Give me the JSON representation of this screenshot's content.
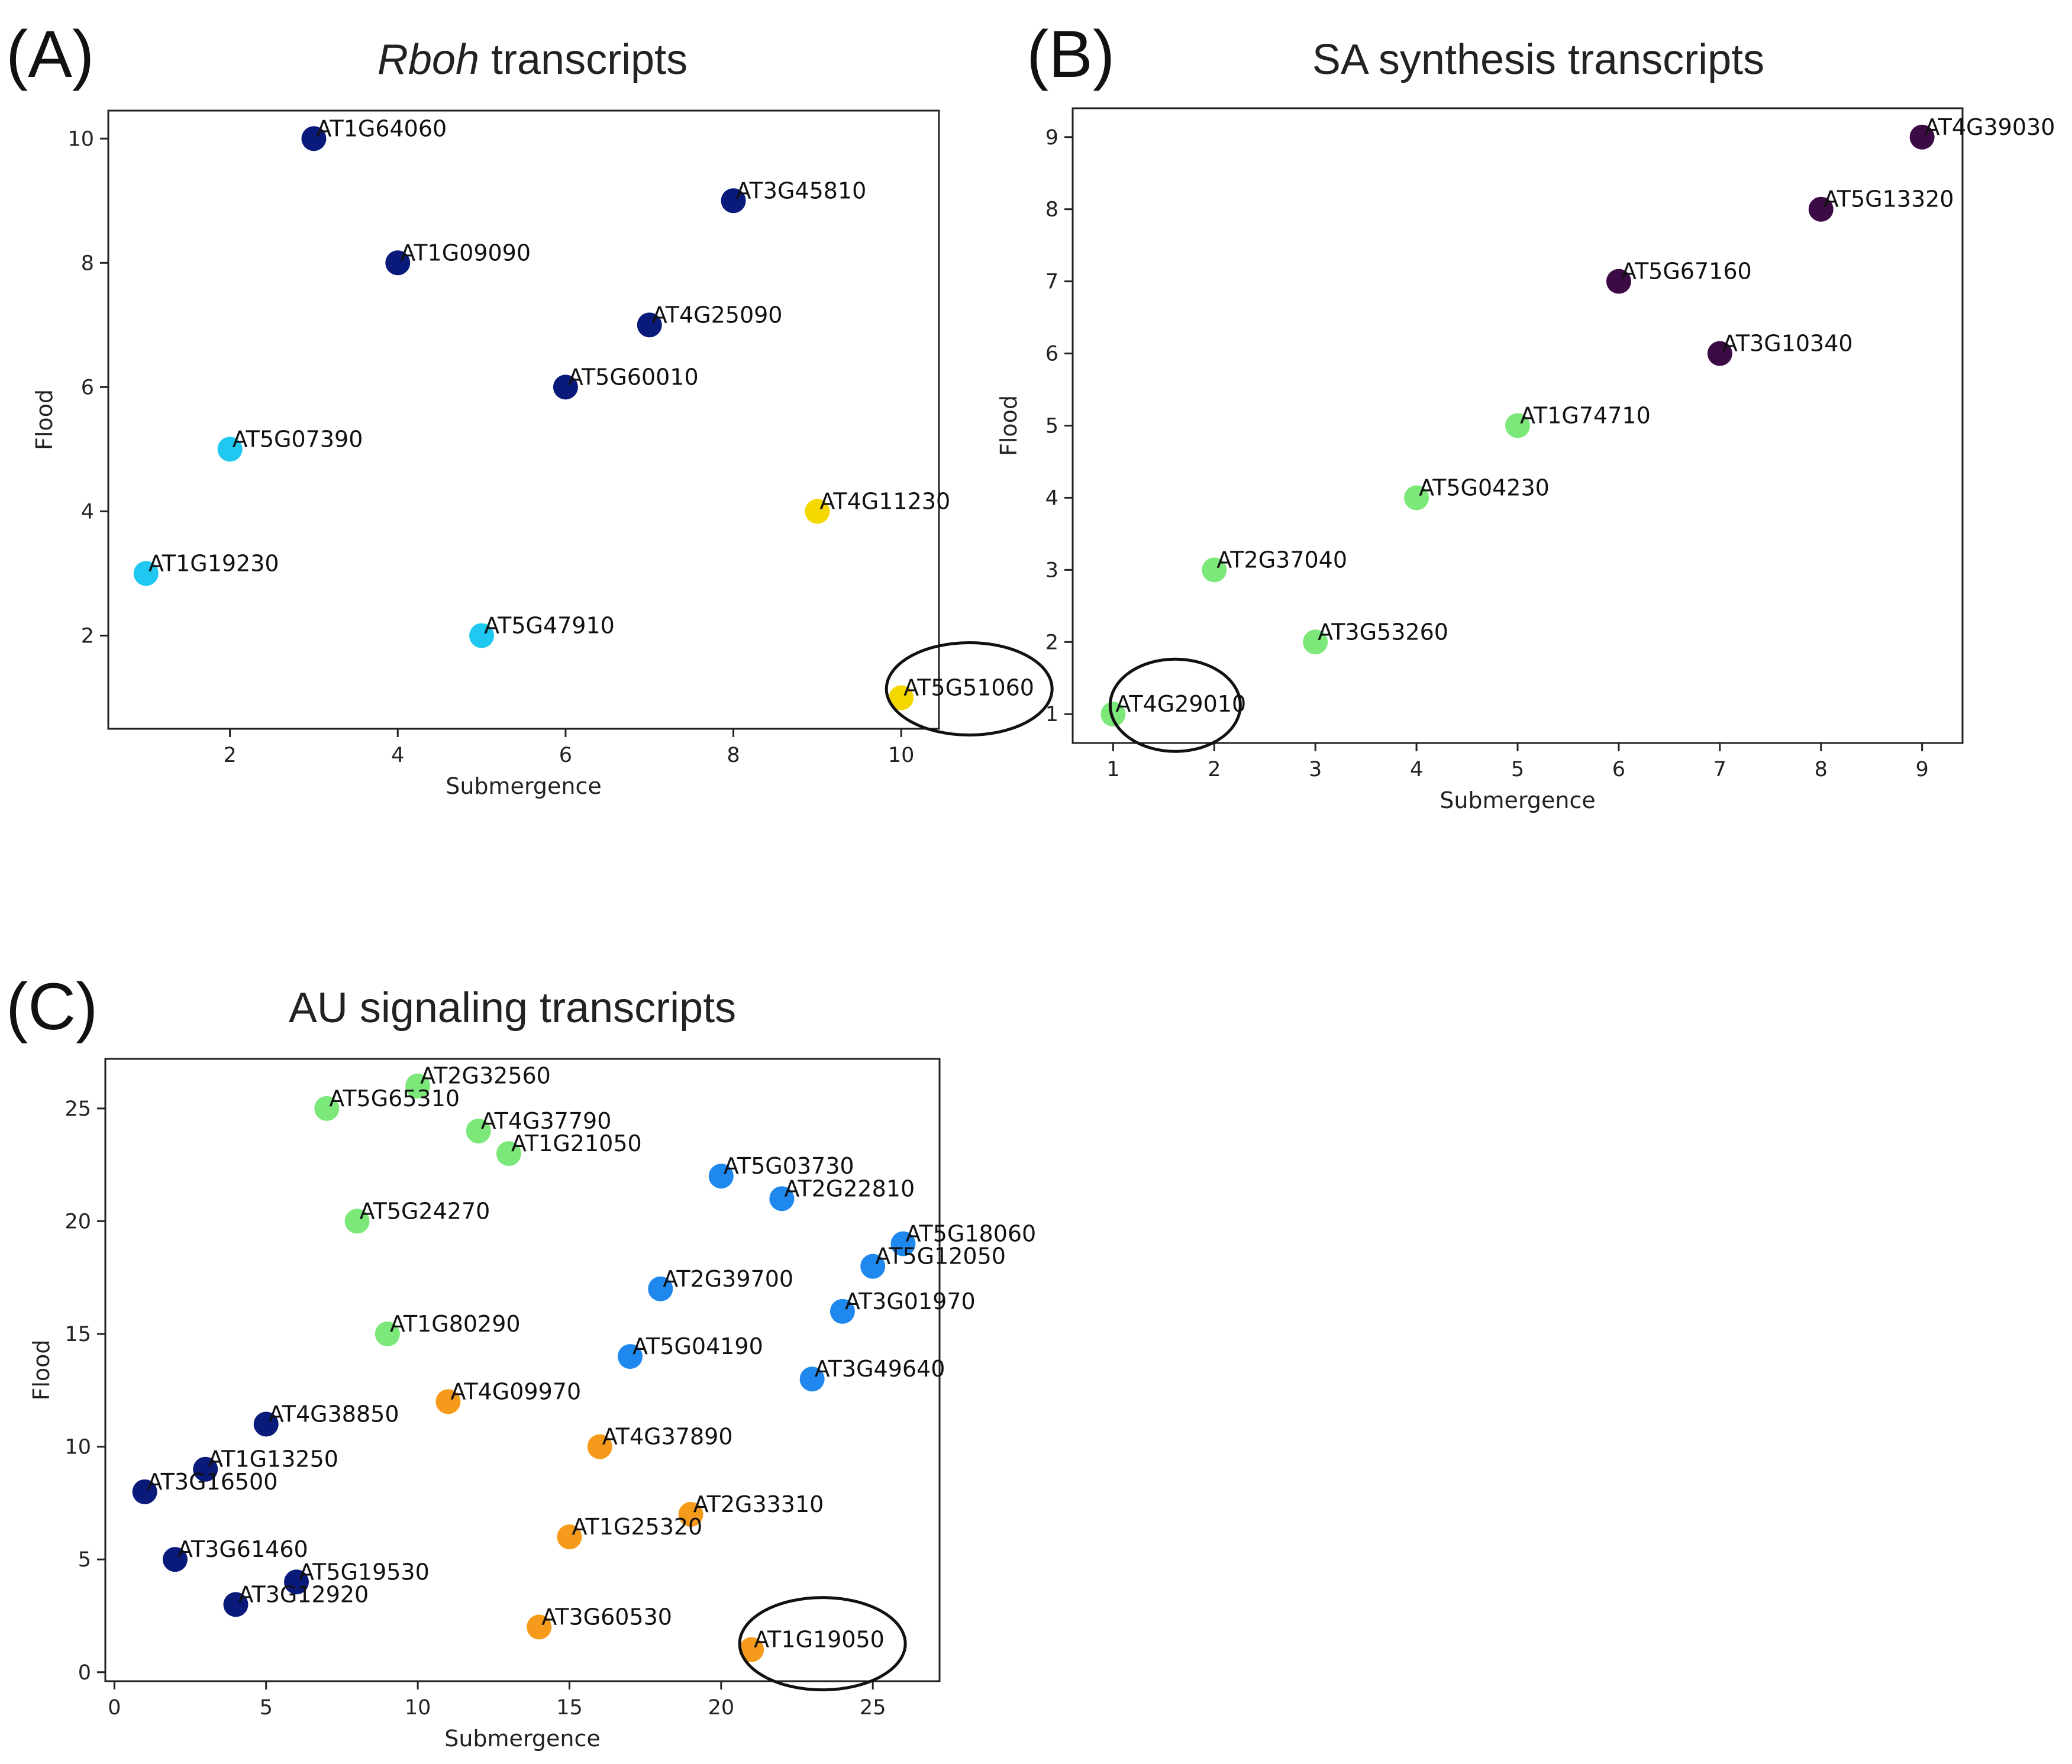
{
  "chart_data": [
    {
      "id": "A",
      "type": "scatter",
      "panel_letter": "(A)",
      "title_italic": "Rboh",
      "title_rest": " transcripts",
      "xlabel": "Submergence",
      "ylabel": "Flood",
      "xlim": [
        0.55,
        10.45
      ],
      "ylim": [
        0.5,
        10.45
      ],
      "xticks": [
        2,
        4,
        6,
        8,
        10
      ],
      "yticks": [
        2,
        4,
        6,
        8,
        10
      ],
      "highlight": "AT5G51060",
      "points": [
        {
          "label": "AT1G64060",
          "x": 3,
          "y": 10,
          "color": "#0a1a7a"
        },
        {
          "label": "AT3G45810",
          "x": 8,
          "y": 9,
          "color": "#0a1a7a"
        },
        {
          "label": "AT1G09090",
          "x": 4,
          "y": 8,
          "color": "#0a1a7a"
        },
        {
          "label": "AT4G25090",
          "x": 7,
          "y": 7,
          "color": "#0a1a7a"
        },
        {
          "label": "AT5G60010",
          "x": 6,
          "y": 6,
          "color": "#0a1a7a"
        },
        {
          "label": "AT5G07390",
          "x": 2,
          "y": 5,
          "color": "#1ec8f0"
        },
        {
          "label": "AT4G11230",
          "x": 9,
          "y": 4,
          "color": "#f5d800"
        },
        {
          "label": "AT1G19230",
          "x": 1,
          "y": 3,
          "color": "#1ec8f0"
        },
        {
          "label": "AT5G47910",
          "x": 5,
          "y": 2,
          "color": "#1ec8f0"
        },
        {
          "label": "AT5G51060",
          "x": 10,
          "y": 1,
          "color": "#f5d800"
        }
      ]
    },
    {
      "id": "B",
      "type": "scatter",
      "panel_letter": "(B)",
      "title_italic": "",
      "title_rest": "SA synthesis transcripts",
      "xlabel": "Submergence",
      "ylabel": "Flood",
      "xlim": [
        0.6,
        9.4
      ],
      "ylim": [
        0.6,
        9.4
      ],
      "xticks": [
        1,
        2,
        3,
        4,
        5,
        6,
        7,
        8,
        9
      ],
      "yticks": [
        1,
        2,
        3,
        4,
        5,
        6,
        7,
        8,
        9
      ],
      "highlight": "AT4G29010",
      "points": [
        {
          "label": "AT4G39030",
          "x": 9,
          "y": 9,
          "color": "#3c0a45"
        },
        {
          "label": "AT5G13320",
          "x": 8,
          "y": 8,
          "color": "#3c0a45"
        },
        {
          "label": "AT5G67160",
          "x": 6,
          "y": 7,
          "color": "#3c0a45"
        },
        {
          "label": "AT3G10340",
          "x": 7,
          "y": 6,
          "color": "#3c0a45"
        },
        {
          "label": "AT1G74710",
          "x": 5,
          "y": 5,
          "color": "#7de87a"
        },
        {
          "label": "AT5G04230",
          "x": 4,
          "y": 4,
          "color": "#7de87a"
        },
        {
          "label": "AT2G37040",
          "x": 2,
          "y": 3,
          "color": "#7de87a"
        },
        {
          "label": "AT3G53260",
          "x": 3,
          "y": 2,
          "color": "#7de87a"
        },
        {
          "label": "AT4G29010",
          "x": 1,
          "y": 1,
          "color": "#7de87a"
        }
      ]
    },
    {
      "id": "C",
      "type": "scatter",
      "panel_letter": "(C)",
      "title_italic": "",
      "title_rest": "AU signaling transcripts",
      "xlabel": "Submergence",
      "ylabel": "Flood",
      "xlim": [
        -0.3,
        27.2
      ],
      "ylim": [
        -0.4,
        27.2
      ],
      "xticks": [
        0,
        5,
        10,
        15,
        20,
        25
      ],
      "yticks": [
        0,
        5,
        10,
        15,
        20,
        25
      ],
      "highlight": "AT1G19050",
      "points": [
        {
          "label": "AT2G32560",
          "x": 10,
          "y": 26,
          "color": "#7de87a"
        },
        {
          "label": "AT5G65310",
          "x": 7,
          "y": 25,
          "color": "#7de87a"
        },
        {
          "label": "AT4G37790",
          "x": 12,
          "y": 24,
          "color": "#7de87a"
        },
        {
          "label": "AT1G21050",
          "x": 13,
          "y": 23,
          "color": "#7de87a"
        },
        {
          "label": "AT5G03730",
          "x": 20,
          "y": 22,
          "color": "#1e88ee"
        },
        {
          "label": "AT2G22810",
          "x": 22,
          "y": 21,
          "color": "#1e88ee"
        },
        {
          "label": "AT5G24270",
          "x": 8,
          "y": 20,
          "color": "#7de87a"
        },
        {
          "label": "AT5G18060",
          "x": 26,
          "y": 19,
          "color": "#1e88ee"
        },
        {
          "label": "AT5G12050",
          "x": 25,
          "y": 18,
          "color": "#1e88ee"
        },
        {
          "label": "AT2G39700",
          "x": 18,
          "y": 17,
          "color": "#1e88ee"
        },
        {
          "label": "AT3G01970",
          "x": 24,
          "y": 16,
          "color": "#1e88ee"
        },
        {
          "label": "AT1G80290",
          "x": 9,
          "y": 15,
          "color": "#7de87a"
        },
        {
          "label": "AT5G04190",
          "x": 17,
          "y": 14,
          "color": "#1e88ee"
        },
        {
          "label": "AT3G49640",
          "x": 23,
          "y": 13,
          "color": "#1e88ee"
        },
        {
          "label": "AT4G09970",
          "x": 11,
          "y": 12,
          "color": "#f59a1a"
        },
        {
          "label": "AT4G38850",
          "x": 5,
          "y": 11,
          "color": "#0a1a7a"
        },
        {
          "label": "AT4G37890",
          "x": 16,
          "y": 10,
          "color": "#f59a1a"
        },
        {
          "label": "AT1G13250",
          "x": 3,
          "y": 9,
          "color": "#0a1a7a"
        },
        {
          "label": "AT3G16500",
          "x": 1,
          "y": 8,
          "color": "#0a1a7a"
        },
        {
          "label": "AT2G33310",
          "x": 19,
          "y": 7,
          "color": "#f59a1a"
        },
        {
          "label": "AT1G25320",
          "x": 15,
          "y": 6,
          "color": "#f59a1a"
        },
        {
          "label": "AT3G61460",
          "x": 2,
          "y": 5,
          "color": "#0a1a7a"
        },
        {
          "label": "AT5G19530",
          "x": 6,
          "y": 4,
          "color": "#0a1a7a"
        },
        {
          "label": "AT3G12920",
          "x": 4,
          "y": 3,
          "color": "#0a1a7a"
        },
        {
          "label": "AT3G60530",
          "x": 14,
          "y": 2,
          "color": "#f59a1a"
        },
        {
          "label": "AT1G19050",
          "x": 21,
          "y": 1,
          "color": "#f59a1a"
        }
      ]
    }
  ]
}
